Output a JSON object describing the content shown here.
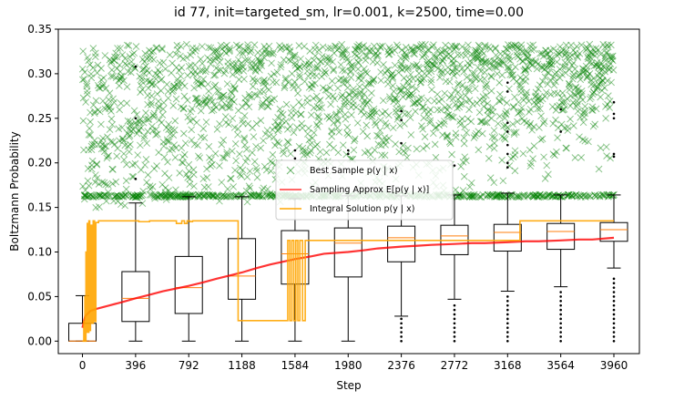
{
  "chart_data": {
    "type": "box+line+scatter",
    "title": "id 77, init=targeted_sm, lr=0.001, k=2500, time=0.00",
    "xlabel": "Step",
    "ylabel": "Boltzmann Probability",
    "xlim": [
      -180,
      4150
    ],
    "ylim": [
      -0.014,
      0.35
    ],
    "xticks": [
      0,
      396,
      792,
      1188,
      1584,
      1980,
      2376,
      2772,
      3168,
      3564,
      3960
    ],
    "xtick_labels": [
      "0",
      "396",
      "792",
      "1188",
      "1584",
      "1980",
      "2376",
      "2772",
      "3168",
      "3564",
      "3960"
    ],
    "yticks": [
      0.0,
      0.05,
      0.1,
      0.15,
      0.2,
      0.25,
      0.3,
      0.35
    ],
    "ytick_labels": [
      "0.00",
      "0.05",
      "0.10",
      "0.15",
      "0.20",
      "0.25",
      "0.30",
      "0.35"
    ],
    "legend": {
      "placement": "center",
      "entries": [
        {
          "label": "Best Sample p(y | x)",
          "color": "#008000",
          "marker": "x"
        },
        {
          "label": "Sampling Approx E[p(y | x)]",
          "color": "#ff0000",
          "marker": "line"
        },
        {
          "label": "Integral Solution p(y | x)",
          "color": "#ffa500",
          "marker": "line"
        }
      ]
    },
    "boxplots": [
      {
        "x": 0,
        "whislo": 0.0,
        "q1": 0.0,
        "med": 0.0,
        "q3": 0.02,
        "whishi": 0.051,
        "fliers": []
      },
      {
        "x": 396,
        "whislo": 0.0,
        "q1": 0.022,
        "med": 0.048,
        "q3": 0.078,
        "whishi": 0.155,
        "fliers": [
          0.182,
          0.25,
          0.308
        ]
      },
      {
        "x": 792,
        "whislo": 0.0,
        "q1": 0.031,
        "med": 0.06,
        "q3": 0.095,
        "whishi": 0.162,
        "fliers": []
      },
      {
        "x": 1188,
        "whislo": 0.0,
        "q1": 0.047,
        "med": 0.073,
        "q3": 0.115,
        "whishi": 0.162,
        "fliers": []
      },
      {
        "x": 1584,
        "whislo": 0.0,
        "q1": 0.064,
        "med": 0.098,
        "q3": 0.124,
        "whishi": 0.16,
        "fliers": [
          0.205,
          0.214
        ]
      },
      {
        "x": 1980,
        "whislo": 0.0,
        "q1": 0.072,
        "med": 0.11,
        "q3": 0.127,
        "whishi": 0.163,
        "fliers": [
          0.21,
          0.214
        ]
      },
      {
        "x": 2376,
        "whislo": 0.028,
        "q1": 0.089,
        "med": 0.116,
        "q3": 0.129,
        "whishi": 0.163,
        "fliers": [
          0.0,
          0.005,
          0.01,
          0.015,
          0.02,
          0.025,
          0.222,
          0.248,
          0.258
        ]
      },
      {
        "x": 2772,
        "whislo": 0.047,
        "q1": 0.097,
        "med": 0.118,
        "q3": 0.13,
        "whishi": 0.164,
        "fliers": [
          0.0,
          0.005,
          0.01,
          0.015,
          0.02,
          0.025,
          0.03,
          0.035,
          0.04,
          0.197
        ]
      },
      {
        "x": 3168,
        "whislo": 0.056,
        "q1": 0.101,
        "med": 0.122,
        "q3": 0.131,
        "whishi": 0.166,
        "fliers": [
          0.0,
          0.005,
          0.01,
          0.015,
          0.02,
          0.025,
          0.03,
          0.035,
          0.04,
          0.045,
          0.05,
          0.195,
          0.2,
          0.21,
          0.22,
          0.235,
          0.245,
          0.28,
          0.29
        ]
      },
      {
        "x": 3564,
        "whislo": 0.061,
        "q1": 0.103,
        "med": 0.123,
        "q3": 0.132,
        "whishi": 0.164,
        "fliers": [
          0.0,
          0.005,
          0.01,
          0.015,
          0.02,
          0.025,
          0.03,
          0.035,
          0.04,
          0.045,
          0.05,
          0.055,
          0.235,
          0.26
        ]
      },
      {
        "x": 3960,
        "whislo": 0.082,
        "q1": 0.112,
        "med": 0.125,
        "q3": 0.133,
        "whishi": 0.164,
        "fliers": [
          0.0,
          0.005,
          0.01,
          0.015,
          0.02,
          0.025,
          0.03,
          0.035,
          0.04,
          0.045,
          0.05,
          0.055,
          0.06,
          0.065,
          0.07,
          0.207,
          0.21,
          0.25,
          0.255,
          0.268
        ]
      }
    ],
    "series": [
      {
        "name": "Sampling Approx E[p(y | x)]",
        "color": "#ff0000",
        "x": [
          0,
          20,
          60,
          100,
          200,
          300,
          396,
          500,
          600,
          792,
          900,
          1000,
          1188,
          1300,
          1400,
          1584,
          1700,
          1800,
          1980,
          2100,
          2200,
          2376,
          2500,
          2600,
          2772,
          2900,
          3000,
          3168,
          3300,
          3400,
          3564,
          3700,
          3800,
          3960
        ],
        "y": [
          0.015,
          0.028,
          0.034,
          0.036,
          0.04,
          0.044,
          0.048,
          0.052,
          0.056,
          0.062,
          0.066,
          0.07,
          0.077,
          0.082,
          0.086,
          0.092,
          0.095,
          0.098,
          0.1,
          0.102,
          0.104,
          0.106,
          0.107,
          0.108,
          0.109,
          0.11,
          0.11,
          0.111,
          0.112,
          0.112,
          0.113,
          0.114,
          0.114,
          0.116
        ]
      },
      {
        "name": "Integral Solution p(y | x)",
        "color": "#ffa500",
        "x": [
          0,
          5,
          10,
          14,
          18,
          22,
          26,
          30,
          36,
          42,
          48,
          54,
          60,
          70,
          80,
          90,
          100,
          120,
          140,
          160,
          175,
          200,
          235,
          250,
          270,
          300,
          340,
          420,
          500,
          540,
          560,
          600,
          650,
          700,
          740,
          760,
          780,
          800,
          820,
          860,
          1000,
          1100,
          1140,
          1160,
          1200,
          1300,
          1400,
          1500,
          1530,
          1545,
          1560,
          1575,
          1590,
          1605,
          1620,
          1640,
          1660,
          1700,
          1800,
          2000,
          2200,
          2400,
          2600,
          2800,
          3000,
          3100,
          3200,
          3260,
          3400,
          3600,
          3800,
          3960
        ],
        "y": [
          0.0,
          0.0,
          0.022,
          0.0,
          0.05,
          0.0,
          0.1,
          0.01,
          0.132,
          0.01,
          0.135,
          0.012,
          0.13,
          0.02,
          0.135,
          0.022,
          0.133,
          0.135,
          0.135,
          0.135,
          0.135,
          0.135,
          0.135,
          0.135,
          0.135,
          0.135,
          0.135,
          0.134,
          0.135,
          0.135,
          0.135,
          0.135,
          0.135,
          0.132,
          0.135,
          0.132,
          0.135,
          0.134,
          0.135,
          0.135,
          0.135,
          0.135,
          0.135,
          0.023,
          0.023,
          0.023,
          0.023,
          0.023,
          0.113,
          0.023,
          0.113,
          0.023,
          0.113,
          0.023,
          0.113,
          0.023,
          0.113,
          0.113,
          0.113,
          0.113,
          0.113,
          0.113,
          0.113,
          0.113,
          0.113,
          0.113,
          0.113,
          0.135,
          0.135,
          0.135,
          0.135,
          0.135
        ]
      }
    ],
    "scatter": {
      "name": "Best Sample p(y | x)",
      "color": "#008000",
      "marker": "x",
      "x_range": [
        0,
        3960
      ],
      "y_range": [
        0.145,
        0.333
      ],
      "band_y": 0.163,
      "note_floor_start": 0.145
    }
  }
}
